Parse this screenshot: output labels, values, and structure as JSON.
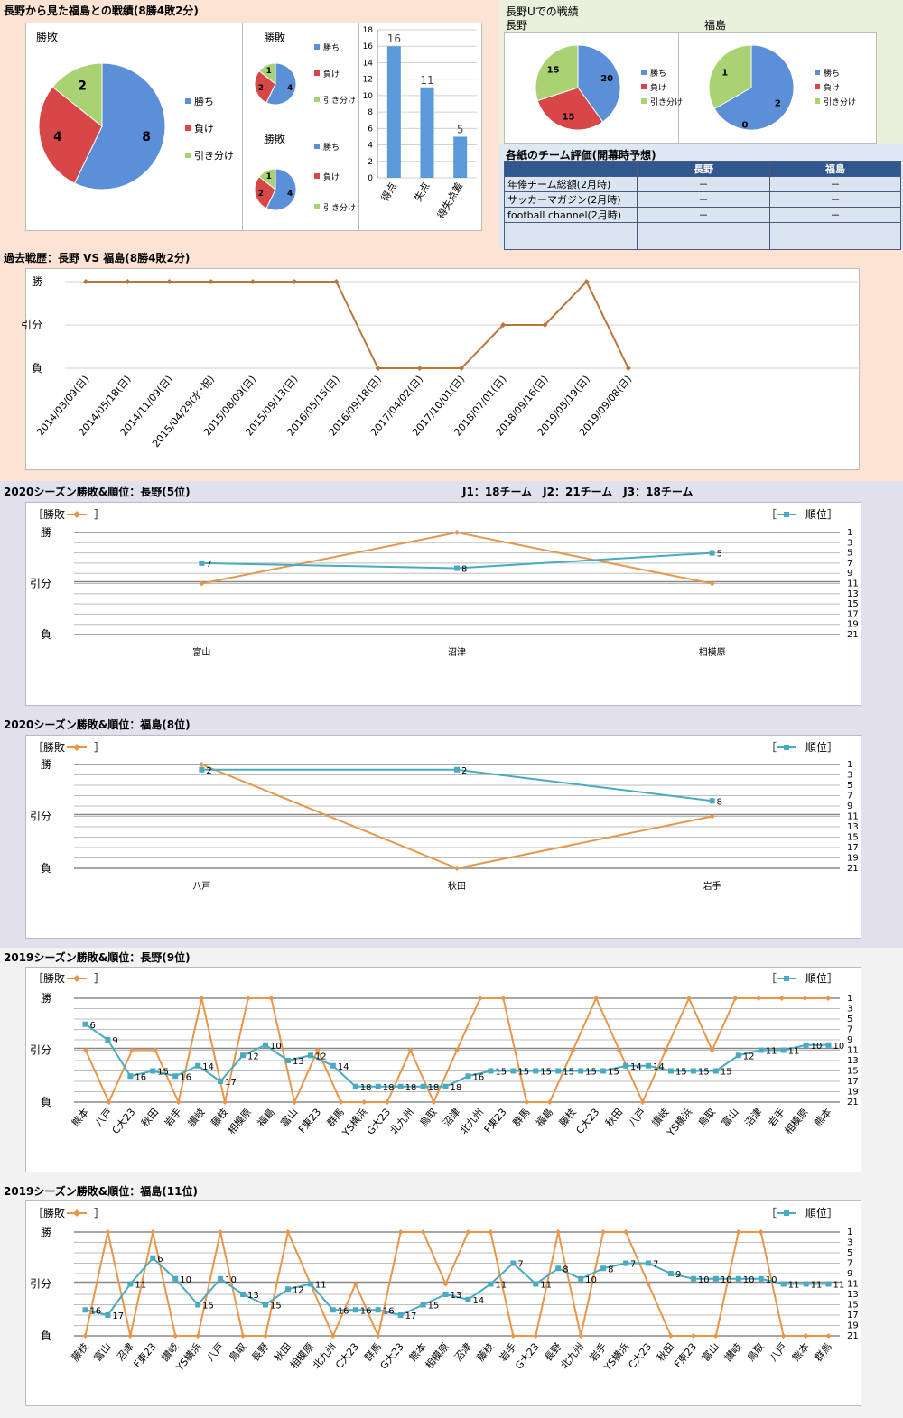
{
  "colors": {
    "win": "#5b8fd8",
    "loss": "#d74747",
    "draw": "#a9d373",
    "orange": "#e8964a",
    "teal": "#4aaabf",
    "pastTrend": "#b8763a"
  },
  "header": {
    "title": "長野から見た福島との戦績(8勝4敗2分)",
    "stadium_title": "長野Uでの戦績",
    "nagano_label": "長野",
    "fukushima_label": "福島"
  },
  "pies": [
    {
      "id": "pie-main",
      "title": "勝敗",
      "legend": [
        "勝ち",
        "負け",
        "引き分け"
      ],
      "values": [
        8,
        4,
        2
      ]
    },
    {
      "id": "pie-home",
      "title": "勝敗",
      "legend": [
        "勝ち",
        "負け",
        "引き分け"
      ],
      "values": [
        4,
        2,
        1
      ]
    },
    {
      "id": "pie-away",
      "title": "勝敗",
      "legend": [
        "勝ち",
        "負け",
        "引き分け"
      ],
      "values": [
        4,
        2,
        1
      ]
    },
    {
      "id": "pie-u-nagano",
      "title": "",
      "legend": [
        "勝ち",
        "負け",
        "引き分け"
      ],
      "values": [
        20,
        15,
        15
      ]
    },
    {
      "id": "pie-u-fukushima",
      "title": "",
      "legend": [
        "勝ち",
        "負け",
        "引き分け"
      ],
      "values": [
        2,
        0,
        1
      ]
    }
  ],
  "goals_chart": {
    "categories": [
      "得点",
      "失点",
      "得失点差"
    ],
    "values": [
      16,
      11,
      5
    ],
    "ylim": [
      0,
      18
    ],
    "yticks": [
      0,
      2,
      4,
      6,
      8,
      10,
      12,
      14,
      16,
      18
    ]
  },
  "eval_table": {
    "title": "各紙のチーム評価(開幕時予想)",
    "headers": [
      "",
      "長野",
      "福島"
    ],
    "rows": [
      [
        "年俸チーム総額(2月時)",
        "－",
        "－"
      ],
      [
        "サッカーマガジン(2月時)",
        "－",
        "－"
      ],
      [
        "football channel(2月時)",
        "－",
        "－"
      ],
      [
        "",
        "",
        ""
      ],
      [
        "",
        "",
        ""
      ]
    ]
  },
  "chart_data": [
    {
      "id": "past",
      "type": "line",
      "title": "過去戦歴：長野 VS 福島(8勝4敗2分)",
      "y_labels": [
        "勝",
        "引分",
        "負"
      ],
      "categories": [
        "2014/03/09(日)",
        "2014/05/18(日)",
        "2014/11/09(日)",
        "2015/04/29(水･祝)",
        "2015/08/09(日)",
        "2015/09/13(日)",
        "2016/05/15(日)",
        "2016/09/18(日)",
        "2017/04/02(日)",
        "2017/10/01(日)",
        "2018/07/01(日)",
        "2018/09/16(日)",
        "2019/05/19(日)",
        "2019/09/08(日)"
      ],
      "results": [
        2,
        2,
        2,
        2,
        2,
        2,
        2,
        0,
        0,
        0,
        1,
        1,
        2,
        0
      ]
    },
    {
      "id": "n2020",
      "type": "line",
      "title": "2020シーズン勝敗&順位：長野(5位)",
      "note": "J1：18チーム　J2：21チーム　J3：18チーム",
      "legend_result": "［勝敗",
      "legend_rank": "順位］",
      "y_labels": [
        "勝",
        "引分",
        "負"
      ],
      "rank_ticks": [
        1,
        3,
        5,
        7,
        9,
        11,
        13,
        15,
        17,
        19,
        21
      ],
      "categories": [
        "富山",
        "沼津",
        "相模原"
      ],
      "results": [
        1,
        2,
        1
      ],
      "ranks": [
        7,
        8,
        5
      ]
    },
    {
      "id": "f2020",
      "type": "line",
      "title": "2020シーズン勝敗&順位：福島(8位)",
      "legend_result": "［勝敗",
      "legend_rank": "順位］",
      "y_labels": [
        "勝",
        "引分",
        "負"
      ],
      "rank_ticks": [
        1,
        3,
        5,
        7,
        9,
        11,
        13,
        15,
        17,
        19,
        21
      ],
      "categories": [
        "八戸",
        "秋田",
        "岩手"
      ],
      "results": [
        2,
        0,
        1
      ],
      "ranks": [
        2,
        2,
        8
      ]
    },
    {
      "id": "n2019",
      "type": "line",
      "title": "2019シーズン勝敗&順位：長野(9位)",
      "legend_result": "［勝敗",
      "legend_rank": "順位］",
      "y_labels": [
        "勝",
        "引分",
        "負"
      ],
      "rank_ticks": [
        1,
        3,
        5,
        7,
        9,
        11,
        13,
        15,
        17,
        19,
        21
      ],
      "categories": [
        "熊本",
        "八戸",
        "C大23",
        "秋田",
        "岩手",
        "讃岐",
        "藤枝",
        "相模原",
        "福島",
        "富山",
        "F東23",
        "群馬",
        "YS横浜",
        "G大23",
        "北九州",
        "鳥取",
        "沼津",
        "北九州",
        "F東23",
        "群馬",
        "福島",
        "藤枝",
        "C大23",
        "秋田",
        "八戸",
        "讃岐",
        "YS横浜",
        "鳥取",
        "富山",
        "沼津",
        "岩手",
        "相模原",
        "熊本"
      ],
      "results": [
        1,
        0,
        1,
        1,
        0,
        2,
        0,
        2,
        2,
        0,
        1,
        0,
        0,
        0,
        1,
        0,
        1,
        2,
        2,
        0,
        0,
        1,
        2,
        1,
        0,
        1,
        2,
        1,
        2,
        2,
        2,
        2,
        2
      ],
      "ranks": [
        6,
        9,
        16,
        15,
        16,
        14,
        17,
        12,
        10,
        13,
        12,
        14,
        18,
        18,
        18,
        18,
        18,
        16,
        15,
        15,
        15,
        15,
        15,
        15,
        14,
        14,
        15,
        15,
        15,
        12,
        11,
        11,
        10,
        10
      ]
    },
    {
      "id": "f2019",
      "type": "line",
      "title": "2019シーズン勝敗&順位：福島(11位)",
      "legend_result": "［勝敗",
      "legend_rank": "順位］",
      "y_labels": [
        "勝",
        "引分",
        "負"
      ],
      "rank_ticks": [
        1,
        3,
        5,
        7,
        9,
        11,
        13,
        15,
        17,
        19,
        21
      ],
      "categories": [
        "藤枝",
        "富山",
        "沼津",
        "F東23",
        "讃岐",
        "YS横浜",
        "八戸",
        "鳥取",
        "長野",
        "秋田",
        "相模原",
        "北九州",
        "C大23",
        "群馬",
        "G大23",
        "熊本",
        "相模原",
        "沼津",
        "藤枝",
        "岩手",
        "G大23",
        "長野",
        "北九州",
        "岩手",
        "YS横浜",
        "C大23",
        "秋田",
        "F東23",
        "富山",
        "讃岐",
        "鳥取",
        "八戸",
        "熊本",
        "群馬"
      ],
      "results": [
        0,
        2,
        0,
        2,
        0,
        0,
        2,
        0,
        0,
        2,
        1,
        0,
        1,
        0,
        2,
        2,
        1,
        2,
        2,
        0,
        0,
        2,
        0,
        2,
        2,
        1,
        0,
        0,
        0,
        2,
        2,
        0,
        0,
        0
      ],
      "ranks": [
        16,
        17,
        11,
        6,
        10,
        15,
        10,
        13,
        15,
        12,
        11,
        16,
        16,
        16,
        17,
        15,
        13,
        14,
        11,
        7,
        11,
        8,
        10,
        8,
        7,
        7,
        9,
        10,
        10,
        10,
        10,
        11,
        11,
        11
      ]
    }
  ]
}
